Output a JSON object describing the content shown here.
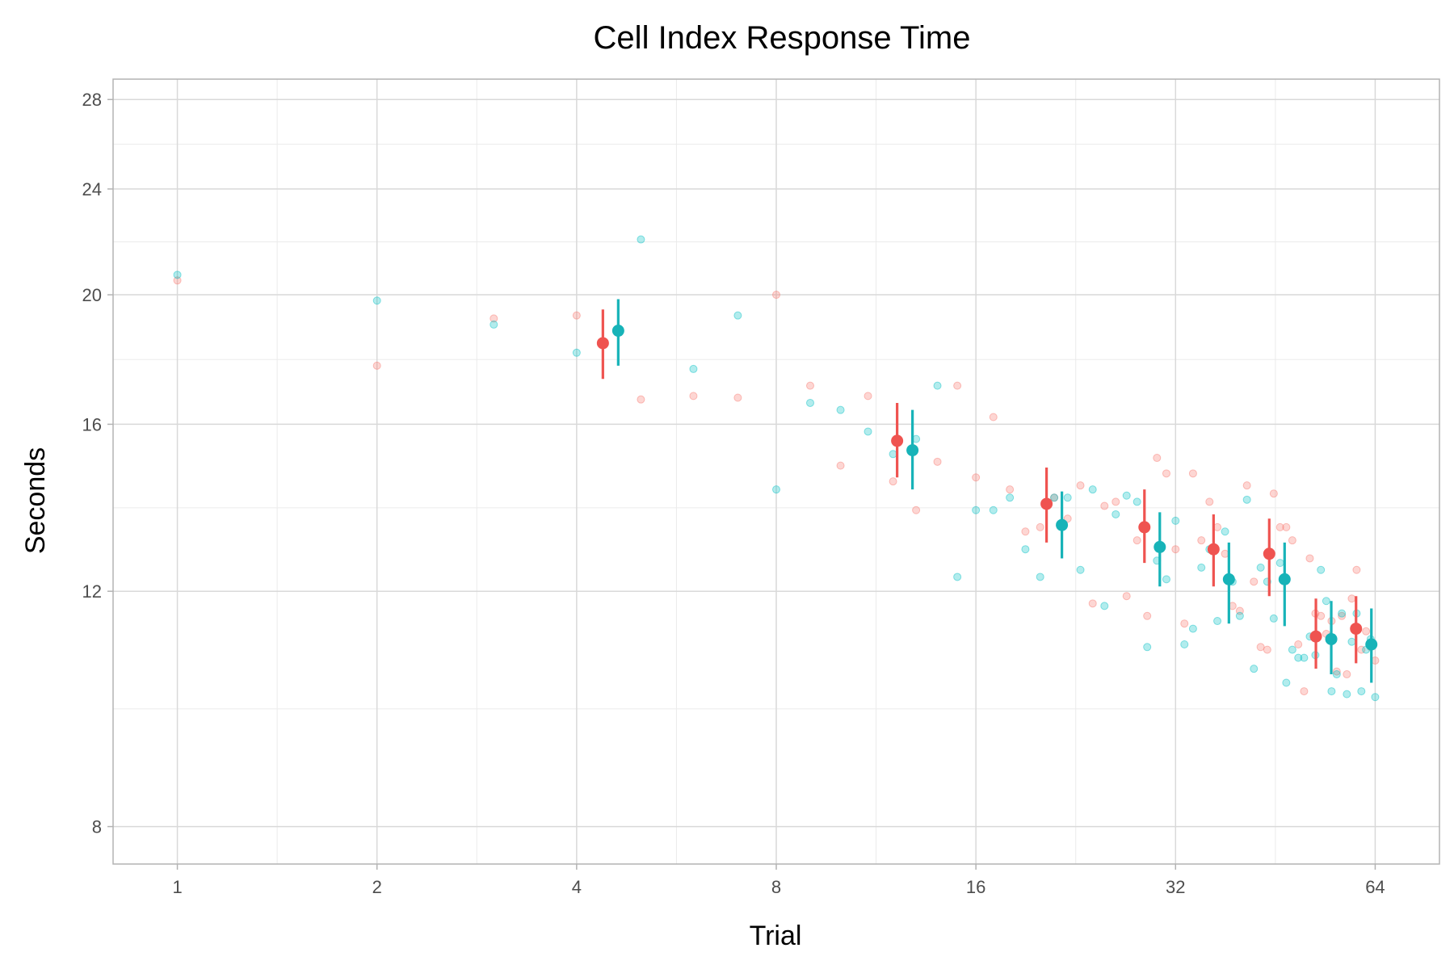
{
  "chart_data": {
    "type": "scatter",
    "title": "Cell Index Response Time",
    "xlabel": "Trial",
    "ylabel": "Seconds",
    "x_scale": "log2",
    "y_scale": "log",
    "xlim": [
      0.8,
      80
    ],
    "ylim": [
      7.5,
      29
    ],
    "x_ticks": [
      1,
      2,
      4,
      8,
      16,
      32,
      64
    ],
    "y_ticks": [
      8,
      12,
      16,
      20,
      24,
      28
    ],
    "grid": true,
    "colors": {
      "red": "#F8766D",
      "teal": "#00BFC4",
      "red_summary": "#EF5350",
      "teal_summary": "#17B3B8"
    },
    "series": [
      {
        "color_key": "red",
        "points": [
          [
            1,
            20.5
          ],
          [
            2,
            17.7
          ],
          [
            3,
            19.2
          ],
          [
            4,
            19.3
          ],
          [
            5,
            16.7
          ],
          [
            6,
            16.8
          ],
          [
            7,
            16.75
          ],
          [
            8,
            20.0
          ],
          [
            9,
            17.1
          ],
          [
            10,
            14.9
          ],
          [
            11,
            16.8
          ],
          [
            12,
            14.5
          ],
          [
            13,
            13.8
          ],
          [
            14,
            15.0
          ],
          [
            15,
            17.1
          ],
          [
            16,
            14.6
          ],
          [
            17,
            16.2
          ],
          [
            18,
            14.3
          ],
          [
            19,
            13.3
          ],
          [
            20,
            13.4
          ],
          [
            21,
            14.1
          ],
          [
            22,
            13.6
          ],
          [
            23,
            14.4
          ],
          [
            24,
            11.75
          ],
          [
            25,
            13.9
          ],
          [
            26,
            14.0
          ],
          [
            27,
            11.9
          ],
          [
            28,
            13.1
          ],
          [
            29,
            11.5
          ],
          [
            30,
            15.1
          ],
          [
            31,
            14.7
          ],
          [
            32,
            12.9
          ],
          [
            33,
            11.35
          ],
          [
            34,
            14.7
          ],
          [
            35,
            13.1
          ],
          [
            36,
            14.0
          ],
          [
            37,
            13.4
          ],
          [
            38,
            12.8
          ],
          [
            39,
            11.7
          ],
          [
            40,
            11.6
          ],
          [
            41,
            14.4
          ],
          [
            42,
            12.2
          ],
          [
            43,
            10.9
          ],
          [
            44,
            10.85
          ],
          [
            45,
            14.2
          ],
          [
            46,
            13.4
          ],
          [
            47,
            13.4
          ],
          [
            48,
            13.1
          ],
          [
            49,
            10.95
          ],
          [
            50,
            10.1
          ],
          [
            51,
            12.7
          ],
          [
            52,
            11.55
          ],
          [
            53,
            11.5
          ],
          [
            54,
            11.15
          ],
          [
            55,
            11.4
          ],
          [
            56,
            10.45
          ],
          [
            57,
            11.5
          ],
          [
            58,
            10.4
          ],
          [
            59,
            11.85
          ],
          [
            60,
            12.45
          ],
          [
            61,
            10.85
          ],
          [
            62,
            11.2
          ],
          [
            63,
            10.9
          ],
          [
            64,
            10.65
          ]
        ]
      },
      {
        "color_key": "teal",
        "points": [
          [
            1,
            20.7
          ],
          [
            2,
            19.8
          ],
          [
            3,
            19.0
          ],
          [
            4,
            18.1
          ],
          [
            5,
            22.0
          ],
          [
            6,
            17.6
          ],
          [
            7,
            19.3
          ],
          [
            8,
            14.3
          ],
          [
            9,
            16.6
          ],
          [
            10,
            16.4
          ],
          [
            11,
            15.8
          ],
          [
            12,
            15.2
          ],
          [
            13,
            15.6
          ],
          [
            14,
            17.1
          ],
          [
            15,
            12.3
          ],
          [
            16,
            13.8
          ],
          [
            17,
            13.8
          ],
          [
            18,
            14.1
          ],
          [
            19,
            12.9
          ],
          [
            20,
            12.3
          ],
          [
            21,
            14.1
          ],
          [
            22,
            14.1
          ],
          [
            23,
            12.45
          ],
          [
            24,
            14.3
          ],
          [
            25,
            11.7
          ],
          [
            26,
            13.7
          ],
          [
            27,
            14.15
          ],
          [
            28,
            14.0
          ],
          [
            29,
            10.9
          ],
          [
            30,
            12.65
          ],
          [
            31,
            12.25
          ],
          [
            32,
            13.55
          ],
          [
            33,
            10.95
          ],
          [
            34,
            11.25
          ],
          [
            35,
            12.5
          ],
          [
            36,
            12.9
          ],
          [
            37,
            11.4
          ],
          [
            38,
            13.3
          ],
          [
            39,
            12.2
          ],
          [
            40,
            11.5
          ],
          [
            41,
            14.05
          ],
          [
            42,
            10.5
          ],
          [
            43,
            12.5
          ],
          [
            44,
            12.2
          ],
          [
            45,
            11.45
          ],
          [
            46,
            12.6
          ],
          [
            47,
            10.25
          ],
          [
            48,
            10.85
          ],
          [
            49,
            10.7
          ],
          [
            50,
            10.7
          ],
          [
            51,
            11.1
          ],
          [
            52,
            10.75
          ],
          [
            53,
            12.45
          ],
          [
            54,
            11.8
          ],
          [
            55,
            10.1
          ],
          [
            56,
            10.4
          ],
          [
            57,
            11.55
          ],
          [
            58,
            10.05
          ],
          [
            59,
            11.0
          ],
          [
            60,
            11.55
          ],
          [
            61,
            10.1
          ],
          [
            62,
            10.85
          ],
          [
            63,
            11.05
          ],
          [
            64,
            10.0
          ]
        ]
      }
    ],
    "summaries": [
      {
        "color_key": "red_summary",
        "points": [
          {
            "x": 4.5,
            "y": 18.4,
            "lo": 17.3,
            "hi": 19.5
          },
          {
            "x": 12.5,
            "y": 15.55,
            "lo": 14.6,
            "hi": 16.6
          },
          {
            "x": 21,
            "y": 13.95,
            "lo": 13.05,
            "hi": 14.85
          },
          {
            "x": 29.5,
            "y": 13.4,
            "lo": 12.6,
            "hi": 14.3
          },
          {
            "x": 37.5,
            "y": 12.9,
            "lo": 12.1,
            "hi": 13.7
          },
          {
            "x": 45.5,
            "y": 12.8,
            "lo": 11.9,
            "hi": 13.6
          },
          {
            "x": 53.5,
            "y": 11.1,
            "lo": 10.5,
            "hi": 11.85
          },
          {
            "x": 61.5,
            "y": 11.25,
            "lo": 10.6,
            "hi": 11.9
          }
        ]
      },
      {
        "color_key": "teal_summary",
        "points": [
          {
            "x": 4.5,
            "y": 18.8,
            "lo": 17.7,
            "hi": 19.85
          },
          {
            "x": 12.5,
            "y": 15.3,
            "lo": 14.3,
            "hi": 16.4
          },
          {
            "x": 21,
            "y": 13.45,
            "lo": 12.7,
            "hi": 14.25
          },
          {
            "x": 29.5,
            "y": 12.95,
            "lo": 12.1,
            "hi": 13.75
          },
          {
            "x": 37.5,
            "y": 12.25,
            "lo": 11.35,
            "hi": 13.05
          },
          {
            "x": 45.5,
            "y": 12.25,
            "lo": 11.3,
            "hi": 13.05
          },
          {
            "x": 53.5,
            "y": 11.05,
            "lo": 10.4,
            "hi": 11.8
          },
          {
            "x": 61.5,
            "y": 10.95,
            "lo": 10.25,
            "hi": 11.65
          }
        ]
      }
    ]
  }
}
